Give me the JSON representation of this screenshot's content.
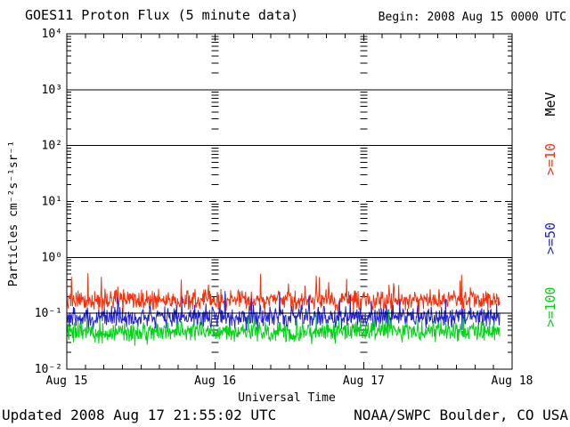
{
  "header": {
    "title": "GOES11 Proton Flux (5 minute data)",
    "begin": "Begin: 2008 Aug 15 0000 UTC"
  },
  "footer": {
    "updated": "Updated 2008 Aug 17 21:55:02 UTC",
    "source": "NOAA/SWPC Boulder, CO USA"
  },
  "chart_data": {
    "type": "line",
    "title": "GOES11 Proton Flux (5 minute data)",
    "subtitle": "Begin: 2008 Aug 15 0000 UTC",
    "xlabel": "Universal Time",
    "ylabel": "Particles cm⁻²s⁻¹sr⁻¹",
    "right_axis_unit": "MeV",
    "y_scale": "log",
    "y_min_exp": -2,
    "y_max_exp": 4,
    "y_ticks": [
      {
        "label": "10⁴",
        "exp": 4
      },
      {
        "label": "10³",
        "exp": 3
      },
      {
        "label": "10²",
        "exp": 2
      },
      {
        "label": "10¹",
        "exp": 1
      },
      {
        "label": "10⁰",
        "exp": 0
      },
      {
        "label": "10⁻¹",
        "exp": -1
      },
      {
        "label": "10⁻²",
        "exp": -2
      }
    ],
    "solid_gridline_exps": [
      3,
      2,
      0,
      -1
    ],
    "dashed_gridline_exps": [
      1
    ],
    "x_ticks": [
      "Aug 15",
      "Aug 16",
      "Aug 17",
      "Aug 18"
    ],
    "x_range_days": 3,
    "minor_x_tick_hours": 3,
    "cadence_minutes": 5,
    "data_end_fraction": 0.972,
    "grid": true,
    "legend_position": "right",
    "axis_color": "#000000",
    "background_color": "#ffffff",
    "series": [
      {
        "name": ">=10",
        "color": "#fb2e0a",
        "mean_flux": 0.17,
        "band_min_flux": 0.09,
        "band_max_flux": 0.32,
        "peak_flux": 0.6
      },
      {
        "name": ">=50",
        "color": "#2222d6",
        "mean_flux": 0.085,
        "band_min_flux": 0.045,
        "band_max_flux": 0.16,
        "peak_flux": 0.28
      },
      {
        "name": ">=100",
        "color": "#00d414",
        "mean_flux": 0.048,
        "band_min_flux": 0.025,
        "band_max_flux": 0.09,
        "peak_flux": 0.12
      }
    ]
  }
}
